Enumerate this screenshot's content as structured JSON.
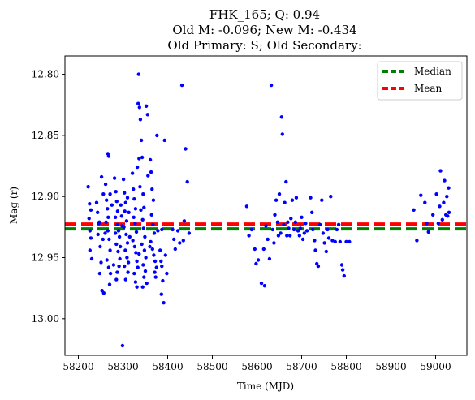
{
  "chart_data": {
    "type": "scatter",
    "title_lines": [
      "FHK_165; Q: 0.94",
      "Old M: -0.096; New M: -0.434",
      "Old Primary: S; Old Secondary:"
    ],
    "xlabel": "Time (MJD)",
    "ylabel": "Mag (r)",
    "xlim": [
      58170,
      59070
    ],
    "ylim": [
      13.03,
      12.785
    ],
    "y_inverted": true,
    "grid": false,
    "legend_placement": "top-right",
    "xticks": [
      58200,
      58300,
      58400,
      58500,
      58600,
      58700,
      58800,
      58900,
      59000
    ],
    "yticks": [
      12.8,
      12.85,
      12.9,
      12.95,
      13.0
    ],
    "ytick_labels": [
      "12.80",
      "12.85",
      "12.90",
      "12.95",
      "13.00"
    ],
    "reference_lines": [
      {
        "name": "Median",
        "value": 12.9265,
        "color": "#008000",
        "style": "dashed"
      },
      {
        "name": "Mean",
        "value": 12.9225,
        "color": "#ff0000",
        "style": "dashed"
      }
    ],
    "series": [
      {
        "color": "#0000ff",
        "points": [
          [
            58222,
            12.892
          ],
          [
            58224,
            12.918
          ],
          [
            58226,
            12.928
          ],
          [
            58228,
            12.934
          ],
          [
            58226,
            12.944
          ],
          [
            58230,
            12.951
          ],
          [
            58225,
            12.906
          ],
          [
            58228,
            12.911
          ],
          [
            58241,
            12.905
          ],
          [
            58243,
            12.913
          ],
          [
            58246,
            12.922
          ],
          [
            58244,
            12.931
          ],
          [
            58249,
            12.941
          ],
          [
            58251,
            12.954
          ],
          [
            58248,
            12.963
          ],
          [
            58253,
            12.977
          ],
          [
            58257,
            12.979
          ],
          [
            58252,
            12.884
          ],
          [
            58256,
            12.898
          ],
          [
            58247,
            12.921
          ],
          [
            58255,
            12.935
          ],
          [
            58261,
            12.89
          ],
          [
            58263,
            12.903
          ],
          [
            58265,
            12.91
          ],
          [
            58267,
            12.917
          ],
          [
            58262,
            12.921
          ],
          [
            58266,
            12.928
          ],
          [
            58269,
            12.935
          ],
          [
            58271,
            12.944
          ],
          [
            58264,
            12.952
          ],
          [
            58268,
            12.958
          ],
          [
            58272,
            12.963
          ],
          [
            58270,
            12.972
          ],
          [
            58266,
            12.865
          ],
          [
            58268,
            12.867
          ],
          [
            58271,
            12.898
          ],
          [
            58275,
            12.907
          ],
          [
            58260,
            12.93
          ],
          [
            58281,
            12.885
          ],
          [
            58284,
            12.896
          ],
          [
            58286,
            12.904
          ],
          [
            58288,
            12.912
          ],
          [
            58283,
            12.917
          ],
          [
            58287,
            12.923
          ],
          [
            58290,
            12.928
          ],
          [
            58292,
            12.933
          ],
          [
            58285,
            12.939
          ],
          [
            58289,
            12.945
          ],
          [
            58293,
            12.951
          ],
          [
            58291,
            12.957
          ],
          [
            58287,
            12.962
          ],
          [
            58285,
            12.968
          ],
          [
            58295,
            12.907
          ],
          [
            58297,
            12.916
          ],
          [
            58298,
            12.924
          ],
          [
            58283,
            12.93
          ],
          [
            58294,
            12.941
          ],
          [
            58279,
            12.956
          ],
          [
            58301,
            12.886
          ],
          [
            58303,
            12.897
          ],
          [
            58306,
            12.905
          ],
          [
            58304,
            12.912
          ],
          [
            58308,
            12.92
          ],
          [
            58302,
            12.925
          ],
          [
            58307,
            12.931
          ],
          [
            58310,
            12.938
          ],
          [
            58305,
            12.944
          ],
          [
            58309,
            12.95
          ],
          [
            58312,
            12.954
          ],
          [
            58311,
            12.962
          ],
          [
            58306,
            12.968
          ],
          [
            58303,
            12.957
          ],
          [
            58313,
            12.913
          ],
          [
            58299,
            13.022
          ],
          [
            58310,
            12.901
          ],
          [
            58315,
            12.933
          ],
          [
            58321,
            12.881
          ],
          [
            58323,
            12.894
          ],
          [
            58325,
            12.902
          ],
          [
            58328,
            12.91
          ],
          [
            58324,
            12.917
          ],
          [
            58327,
            12.922
          ],
          [
            58330,
            12.929
          ],
          [
            58322,
            12.936
          ],
          [
            58326,
            12.941
          ],
          [
            58329,
            12.946
          ],
          [
            58331,
            12.953
          ],
          [
            58333,
            12.958
          ],
          [
            58325,
            12.963
          ],
          [
            58328,
            12.97
          ],
          [
            58331,
            12.974
          ],
          [
            58335,
            12.8
          ],
          [
            58334,
            12.824
          ],
          [
            58337,
            12.827
          ],
          [
            58339,
            12.837
          ],
          [
            58336,
            12.869
          ],
          [
            58338,
            12.892
          ],
          [
            58332,
            12.876
          ],
          [
            58340,
            12.911
          ],
          [
            58336,
            12.947
          ],
          [
            58341,
            12.854
          ],
          [
            58343,
            12.868
          ],
          [
            58345,
            12.898
          ],
          [
            58347,
            12.909
          ],
          [
            58344,
            12.919
          ],
          [
            58346,
            12.926
          ],
          [
            58349,
            12.933
          ],
          [
            58342,
            12.939
          ],
          [
            58348,
            12.944
          ],
          [
            58351,
            12.95
          ],
          [
            58345,
            12.956
          ],
          [
            58350,
            12.961
          ],
          [
            58347,
            12.966
          ],
          [
            58353,
            12.971
          ],
          [
            58344,
            12.974
          ],
          [
            58352,
            12.826
          ],
          [
            58355,
            12.833
          ],
          [
            58356,
            12.883
          ],
          [
            58361,
            12.87
          ],
          [
            58363,
            12.88
          ],
          [
            58365,
            12.894
          ],
          [
            58368,
            12.903
          ],
          [
            58364,
            12.915
          ],
          [
            58367,
            12.923
          ],
          [
            58370,
            12.93
          ],
          [
            58362,
            12.937
          ],
          [
            58366,
            12.943
          ],
          [
            58369,
            12.948
          ],
          [
            58372,
            12.953
          ],
          [
            58375,
            12.958
          ],
          [
            58371,
            12.962
          ],
          [
            58373,
            12.966
          ],
          [
            58376,
            12.85
          ],
          [
            58378,
            12.928
          ],
          [
            58360,
            12.941
          ],
          [
            58383,
            12.944
          ],
          [
            58385,
            12.953
          ],
          [
            58387,
            12.957
          ],
          [
            58389,
            12.969
          ],
          [
            58386,
            12.98
          ],
          [
            58391,
            12.987
          ],
          [
            58393,
            12.854
          ],
          [
            58387,
            12.927
          ],
          [
            58395,
            12.948
          ],
          [
            58398,
            12.963
          ],
          [
            58411,
            12.927
          ],
          [
            58414,
            12.935
          ],
          [
            58417,
            12.943
          ],
          [
            58423,
            12.928
          ],
          [
            58427,
            12.938
          ],
          [
            58432,
            12.809
          ],
          [
            58435,
            12.936
          ],
          [
            58437,
            12.92
          ],
          [
            58440,
            12.861
          ],
          [
            58444,
            12.888
          ],
          [
            58448,
            12.93
          ],
          [
            58577,
            12.908
          ],
          [
            58582,
            12.932
          ],
          [
            58588,
            12.927
          ],
          [
            58595,
            12.943
          ],
          [
            58598,
            12.955
          ],
          [
            58603,
            12.952
          ],
          [
            58610,
            12.971
          ],
          [
            58615,
            12.943
          ],
          [
            58617,
            12.973
          ],
          [
            58620,
            12.924
          ],
          [
            58624,
            12.935
          ],
          [
            58628,
            12.951
          ],
          [
            58632,
            12.809
          ],
          [
            58635,
            12.927
          ],
          [
            58638,
            12.938
          ],
          [
            58640,
            12.915
          ],
          [
            58643,
            12.903
          ],
          [
            58646,
            12.921
          ],
          [
            58648,
            12.932
          ],
          [
            58650,
            12.898
          ],
          [
            58653,
            12.93
          ],
          [
            58655,
            12.835
          ],
          [
            58657,
            12.849
          ],
          [
            58660,
            12.923
          ],
          [
            58662,
            12.905
          ],
          [
            58665,
            12.888
          ],
          [
            58667,
            12.932
          ],
          [
            58669,
            12.921
          ],
          [
            58671,
            12.926
          ],
          [
            58674,
            12.932
          ],
          [
            58676,
            12.918
          ],
          [
            58679,
            12.903
          ],
          [
            58683,
            12.927
          ],
          [
            58686,
            12.921
          ],
          [
            58688,
            12.901
          ],
          [
            58692,
            12.928
          ],
          [
            58695,
            12.932
          ],
          [
            58697,
            12.926
          ],
          [
            58700,
            12.917
          ],
          [
            58703,
            12.935
          ],
          [
            58706,
            12.93
          ],
          [
            58709,
            12.922
          ],
          [
            58712,
            12.928
          ],
          [
            58720,
            12.901
          ],
          [
            58723,
            12.913
          ],
          [
            58725,
            12.927
          ],
          [
            58729,
            12.936
          ],
          [
            58731,
            12.944
          ],
          [
            58734,
            12.955
          ],
          [
            58737,
            12.957
          ],
          [
            58741,
            12.923
          ],
          [
            58745,
            12.903
          ],
          [
            58748,
            12.93
          ],
          [
            58751,
            12.938
          ],
          [
            58755,
            12.945
          ],
          [
            58758,
            12.927
          ],
          [
            58761,
            12.934
          ],
          [
            58765,
            12.9
          ],
          [
            58769,
            12.936
          ],
          [
            58775,
            12.937
          ],
          [
            58779,
            12.927
          ],
          [
            58783,
            12.923
          ],
          [
            58786,
            12.937
          ],
          [
            58790,
            12.956
          ],
          [
            58792,
            12.96
          ],
          [
            58795,
            12.965
          ],
          [
            58800,
            12.937
          ],
          [
            58807,
            12.937
          ],
          [
            58951,
            12.911
          ],
          [
            58958,
            12.936
          ],
          [
            58967,
            12.899
          ],
          [
            58976,
            12.905
          ],
          [
            58980,
            12.922
          ],
          [
            58984,
            12.929
          ],
          [
            58994,
            12.915
          ],
          [
            59002,
            12.898
          ],
          [
            59006,
            12.922
          ],
          [
            59009,
            12.908
          ],
          [
            59011,
            12.879
          ],
          [
            59015,
            12.919
          ],
          [
            59018,
            12.905
          ],
          [
            59020,
            12.887
          ],
          [
            59023,
            12.915
          ],
          [
            59025,
            12.9
          ],
          [
            59027,
            12.916
          ],
          [
            59029,
            12.893
          ],
          [
            59030,
            12.913
          ]
        ]
      }
    ]
  }
}
